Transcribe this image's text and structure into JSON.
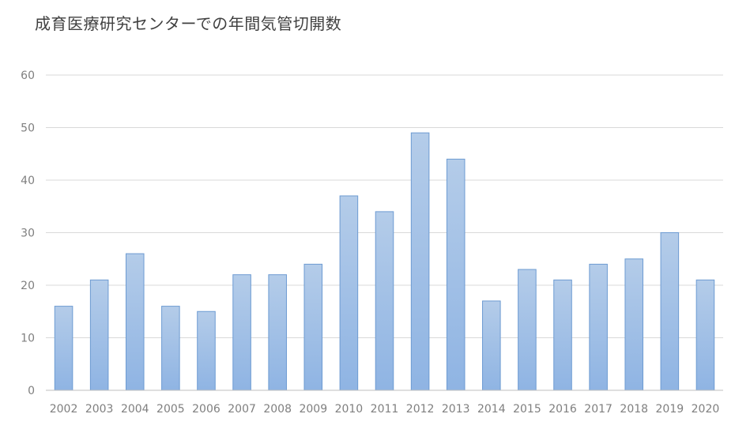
{
  "chart_data": {
    "type": "bar",
    "title": "成育医療研究センターでの年間気管切開数",
    "categories": [
      "2002",
      "2003",
      "2004",
      "2005",
      "2006",
      "2007",
      "2008",
      "2009",
      "2010",
      "2011",
      "2012",
      "2013",
      "2014",
      "2015",
      "2016",
      "2017",
      "2018",
      "2019",
      "2020"
    ],
    "values": [
      16,
      21,
      26,
      16,
      15,
      22,
      22,
      24,
      37,
      34,
      49,
      44,
      17,
      23,
      21,
      24,
      25,
      30,
      21
    ],
    "xlabel": "",
    "ylabel": "",
    "ylim": [
      0,
      60
    ],
    "yticks": [
      0,
      10,
      20,
      30,
      40,
      50,
      60
    ],
    "grid": true,
    "legend": "none",
    "colors": {
      "bar_top": "#b4cce9",
      "bar_bottom": "#8fb4e3",
      "bar_stroke": "#6d9bd2",
      "grid": "#d9d9d9",
      "axis": "#bfbfbf",
      "text": "#7f7f7f",
      "title": "#404040"
    }
  }
}
